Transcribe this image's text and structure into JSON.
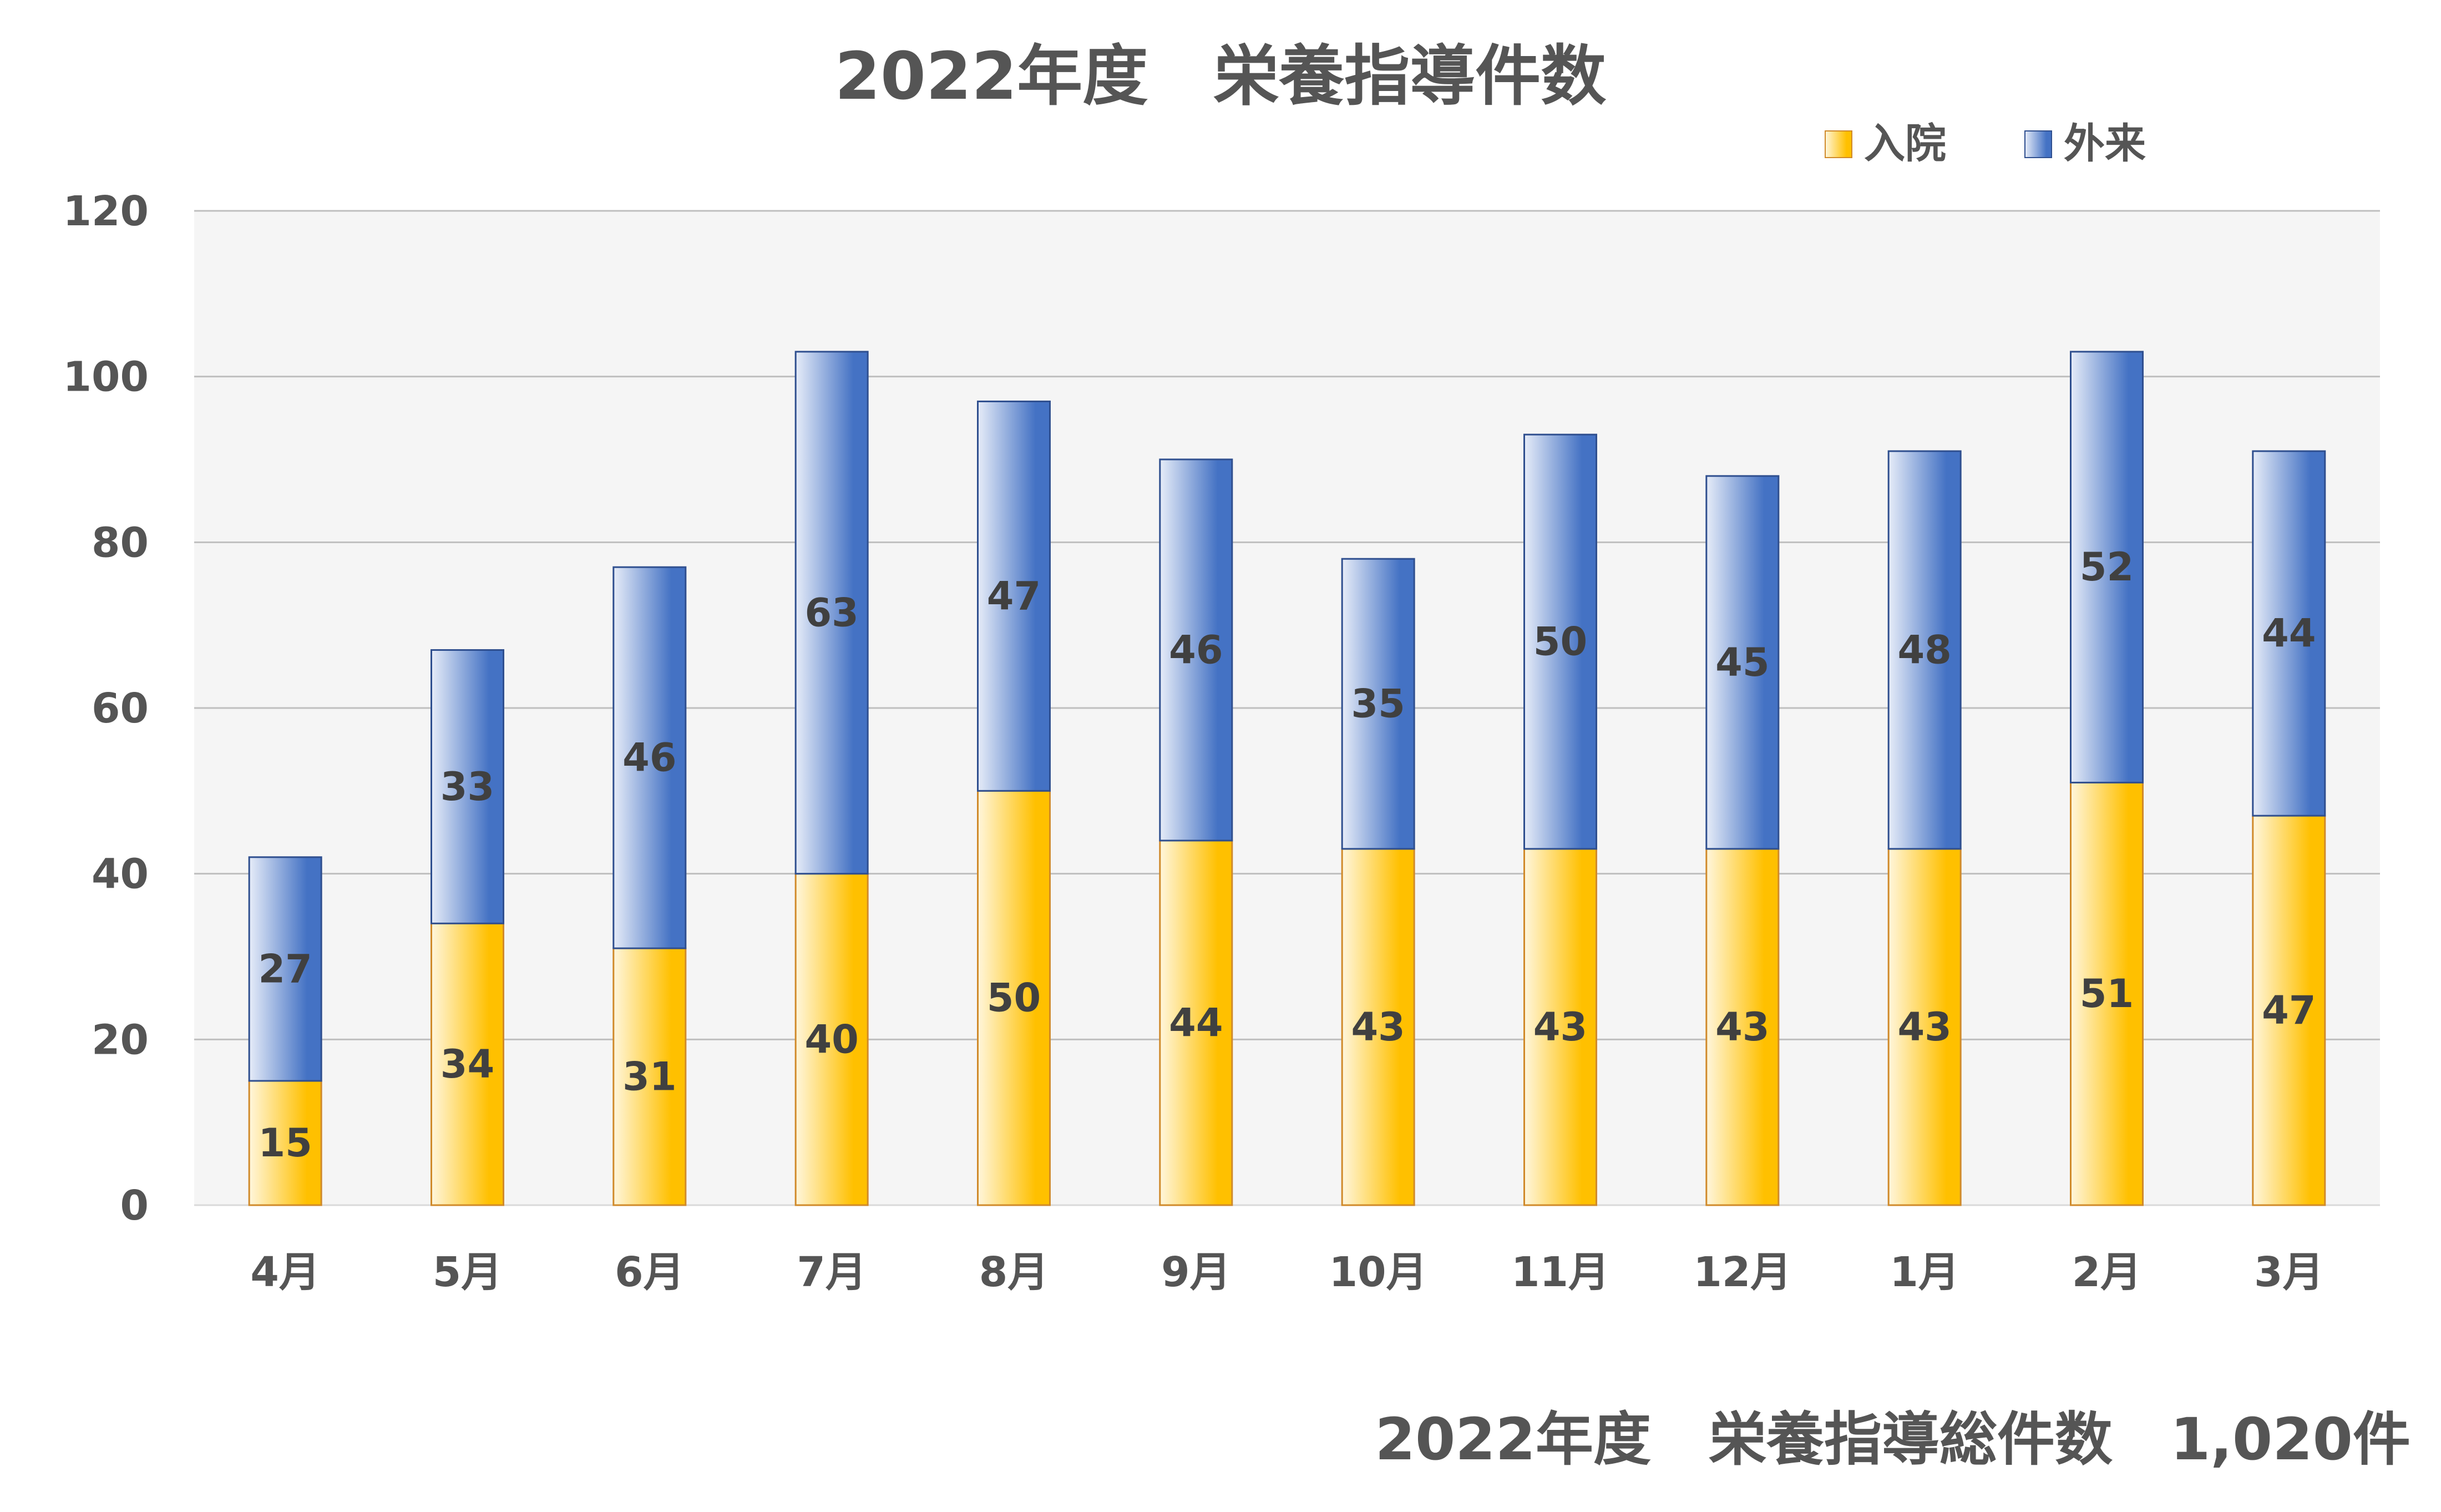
{
  "colors": {
    "inpatient_dark": "#FFC000",
    "inpatient_light": "#FFF6DC",
    "inpatient_border": "#D08A2A",
    "outpatient_dark": "#4472C4",
    "outpatient_light": "#E6ECF8",
    "outpatient_border": "#2F4F8F",
    "plot_background": "#F5F5F5",
    "text": "#555555"
  },
  "chart_data": {
    "type": "bar",
    "stacked": true,
    "title": "2022年度　栄養指導件数",
    "categories": [
      "4月",
      "5月",
      "6月",
      "7月",
      "8月",
      "9月",
      "10月",
      "11月",
      "12月",
      "1月",
      "2月",
      "3月"
    ],
    "series": [
      {
        "name": "入院",
        "values": [
          15,
          34,
          31,
          40,
          50,
          44,
          43,
          43,
          43,
          43,
          51,
          47
        ]
      },
      {
        "name": "外来",
        "values": [
          27,
          33,
          46,
          63,
          47,
          46,
          35,
          50,
          45,
          48,
          52,
          44
        ]
      }
    ],
    "ylim": [
      0,
      120
    ],
    "yticks": [
      0,
      20,
      40,
      60,
      80,
      100,
      120
    ],
    "xlabel": "",
    "ylabel": "",
    "grid": true,
    "legend_position": "top-right",
    "data_labels": true
  },
  "footer": {
    "total_text": "2022年度　栄養指導総件数　1,020件"
  }
}
